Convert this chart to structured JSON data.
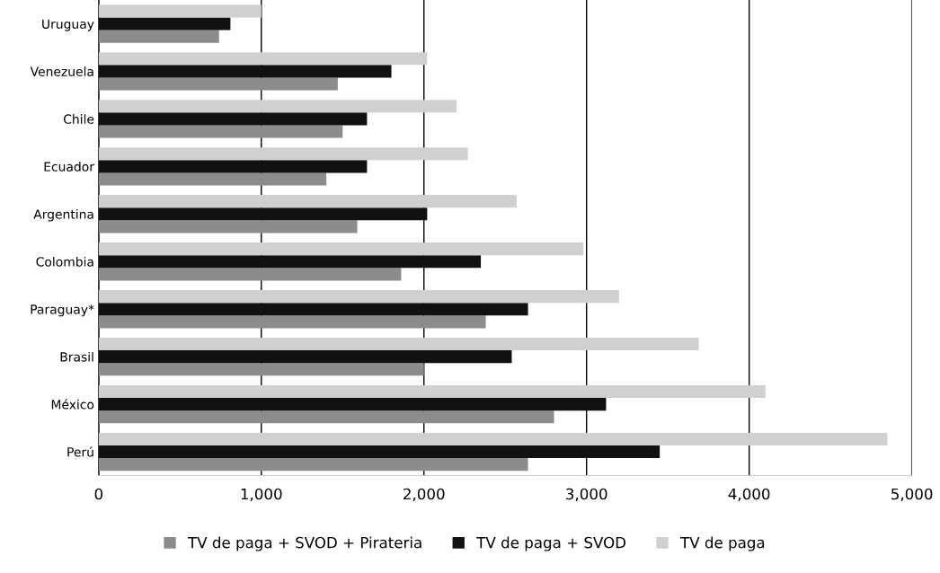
{
  "chart_data": {
    "type": "bar",
    "orientation": "horizontal",
    "categories": [
      "Uruguay",
      "Venezuela",
      "Chile",
      "Ecuador",
      "Argentina",
      "Colombia",
      "Paraguay*",
      "Brasil",
      "México",
      "Perú"
    ],
    "series": [
      {
        "name": "TV de paga + SVOD + Pirateria",
        "color": "#8c8c8c",
        "values": [
          740,
          1470,
          1500,
          1400,
          1590,
          1860,
          2380,
          2000,
          2800,
          2640
        ]
      },
      {
        "name": "TV de paga + SVOD",
        "color": "#111111",
        "values": [
          810,
          1800,
          1650,
          1650,
          2020,
          2350,
          2640,
          2540,
          3120,
          3450
        ]
      },
      {
        "name": "TV de paga",
        "color": "#d0d0d0",
        "values": [
          1000,
          2020,
          2200,
          2270,
          2570,
          2980,
          3200,
          3690,
          4100,
          4850
        ]
      }
    ],
    "xlim": [
      0,
      5000
    ],
    "xticks": [
      {
        "value": 0,
        "label": "0"
      },
      {
        "value": 1000,
        "label": "1,000"
      },
      {
        "value": 2000,
        "label": "2,000"
      },
      {
        "value": 3000,
        "label": "3,000"
      },
      {
        "value": 4000,
        "label": "4,000"
      },
      {
        "value": 5000,
        "label": "5,000"
      }
    ],
    "grid": "x",
    "legend": "bottom"
  }
}
